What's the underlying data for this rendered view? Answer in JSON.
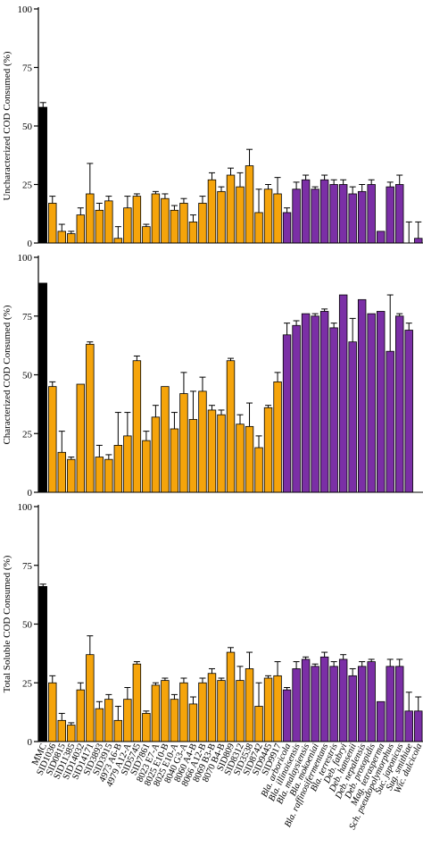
{
  "colors": {
    "control": "#000000",
    "yeast": "#F5A40B",
    "nonconventional": "#7B2FA6",
    "axis": "#000000",
    "error_bar": "#000000"
  },
  "categories": [
    "MMC",
    "SID1036",
    "SID0815",
    "SID11385",
    "SID14032",
    "SID14171",
    "SID3893",
    "SID3915",
    "4973 A6-B",
    "4979 A12-A",
    "SID5745",
    "SID7861",
    "8023 E7-A",
    "8025 E10-B",
    "8025 E10-A",
    "8040 G3-A",
    "8060 A4-B",
    "8066 A12-B",
    "8069 B3-B",
    "8070 B4-B",
    "SID809",
    "SID8312",
    "SID3538",
    "SID8742",
    "SID9445",
    "SID9917",
    "Bla. arboricola",
    "Bla. illinoisensis",
    "Bla. malaysiensis",
    "Bla. mokoeniai",
    "Bla. raffinosifermentans",
    "Bla. terrestris",
    "Deb. fabryi",
    "Deb. hansenii",
    "Deb. nepalensis",
    "Deb. prosopidis",
    "Mag. tetrasperma",
    "Sch. pseudopolymorphus",
    "Suc. japonicus",
    "Sug. smithiae",
    "Wic. dulcicola"
  ],
  "italic_from_index": 26,
  "chart_data": [
    {
      "type": "bar",
      "ylabel": "Uncharacterized COD Consumed (%)",
      "ylim": [
        0,
        100
      ],
      "yticks": [
        0,
        25,
        50,
        75,
        100
      ],
      "values": [
        58,
        17,
        5,
        4,
        12,
        21,
        14,
        18,
        2,
        15,
        20,
        7,
        21,
        19,
        14,
        17,
        9,
        17,
        27,
        22,
        29,
        24,
        33,
        13,
        23,
        21,
        13,
        23,
        27,
        23,
        27,
        25,
        25,
        21,
        22,
        25,
        5,
        24,
        25,
        0,
        2
      ],
      "errors": [
        2,
        3,
        3,
        1,
        3,
        13,
        3,
        2,
        5,
        5,
        1,
        1,
        1,
        2,
        2,
        2,
        3,
        3,
        3,
        2,
        3,
        6,
        7,
        10,
        2,
        7,
        2,
        3,
        2,
        1,
        2,
        2,
        2,
        3,
        3,
        2,
        0,
        2,
        4,
        9,
        7
      ]
    },
    {
      "type": "bar",
      "ylabel": "Characterized COD Consumed (%)",
      "ylim": [
        0,
        100
      ],
      "yticks": [
        0,
        25,
        50,
        75,
        100
      ],
      "values": [
        89,
        45,
        17,
        14,
        46,
        63,
        15,
        14,
        20,
        24,
        56,
        22,
        32,
        45,
        27,
        42,
        31,
        43,
        35,
        33,
        56,
        29,
        28,
        19,
        36,
        47,
        67,
        71,
        76,
        75,
        77,
        70,
        84,
        64,
        82,
        76,
        77,
        60,
        75,
        69,
        0
      ],
      "errors": [
        0,
        2,
        9,
        1,
        0,
        1,
        5,
        2,
        14,
        10,
        2,
        4,
        5,
        0,
        7,
        9,
        12,
        6,
        2,
        2,
        1,
        4,
        10,
        5,
        1,
        4,
        5,
        2,
        0,
        1,
        1,
        2,
        0,
        10,
        0,
        0,
        0,
        24,
        1,
        3,
        0
      ]
    },
    {
      "type": "bar",
      "ylabel": "Total Soluble COD Consumed (%)",
      "ylim": [
        0,
        100
      ],
      "yticks": [
        0,
        25,
        50,
        75,
        100
      ],
      "values": [
        66,
        25,
        9,
        7,
        22,
        37,
        14,
        18,
        9,
        18,
        33,
        12,
        24,
        26,
        18,
        25,
        16,
        25,
        29,
        26,
        38,
        26,
        31,
        15,
        27,
        28,
        22,
        31,
        35,
        32,
        36,
        32,
        35,
        28,
        32,
        34,
        17,
        32,
        32,
        13,
        13
      ],
      "errors": [
        1,
        3,
        3,
        1,
        3,
        8,
        3,
        2,
        6,
        5,
        1,
        1,
        1,
        1,
        2,
        2,
        3,
        2,
        2,
        1,
        2,
        6,
        7,
        10,
        1,
        6,
        1,
        3,
        1,
        1,
        2,
        2,
        2,
        3,
        2,
        1,
        0,
        3,
        3,
        8,
        6
      ]
    }
  ]
}
